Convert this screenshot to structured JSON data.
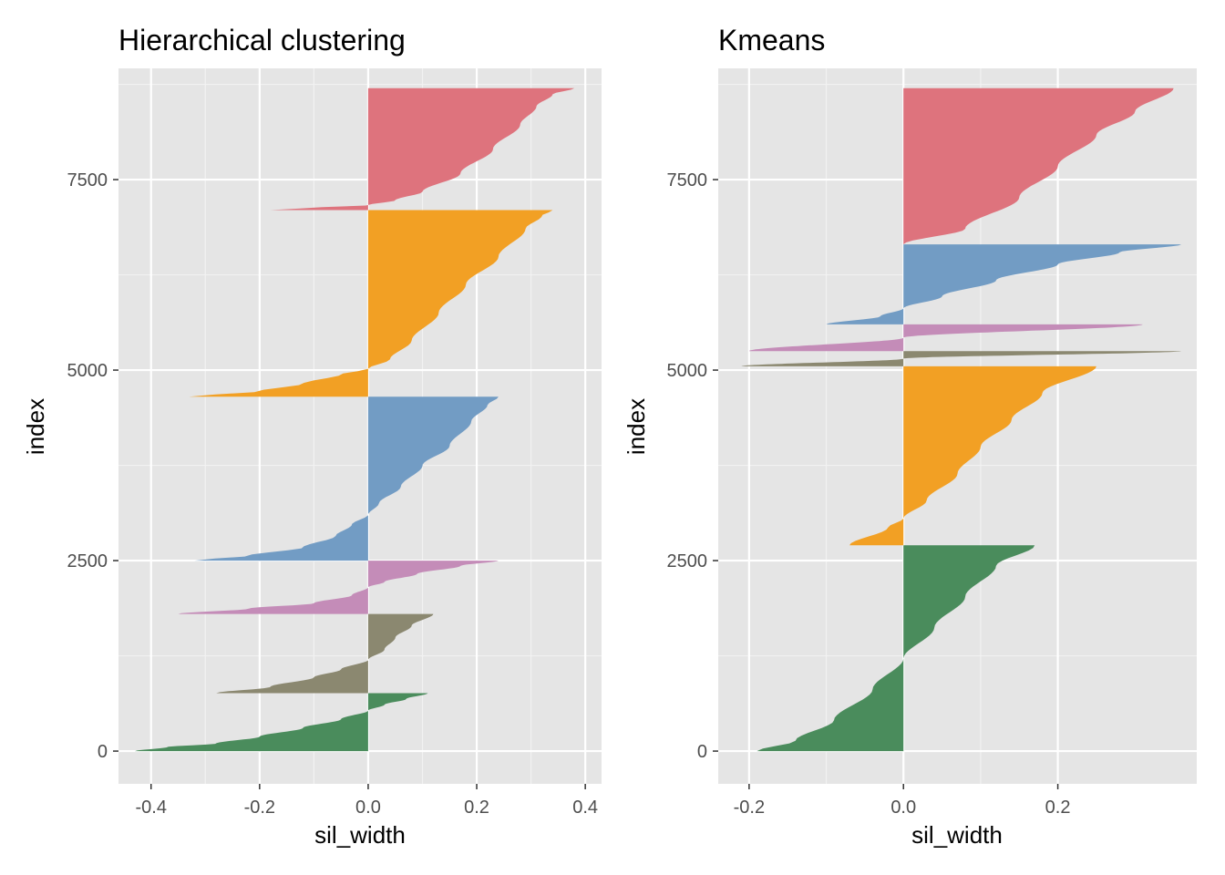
{
  "chart_data": [
    {
      "type": "silhouette",
      "title": "Hierarchical clustering",
      "xlabel": "sil_width",
      "ylabel": "index",
      "xlim": [
        -0.46,
        0.43
      ],
      "ylim": [
        -430,
        8960
      ],
      "xticks": [
        -0.4,
        -0.2,
        0.0,
        0.2,
        0.4
      ],
      "xtick_labels": [
        "-0.4",
        "-0.2",
        "0.0",
        "0.2",
        "0.4"
      ],
      "yticks": [
        0,
        2500,
        5000,
        7500
      ],
      "ytick_labels": [
        "0",
        "2500",
        "5000",
        "7500"
      ],
      "grid": true,
      "clusters": [
        {
          "color": "#4a8c5c",
          "index_range": [
            0,
            760
          ],
          "profile": [
            [
              0,
              -0.43
            ],
            [
              0.07,
              -0.37
            ],
            [
              0.13,
              -0.28
            ],
            [
              0.25,
              -0.2
            ],
            [
              0.4,
              -0.12
            ],
            [
              0.55,
              -0.05
            ],
            [
              0.7,
              0.0
            ],
            [
              0.8,
              0.03
            ],
            [
              0.9,
              0.07
            ],
            [
              1,
              0.11
            ]
          ]
        },
        {
          "color": "#8b8870",
          "index_range": [
            760,
            1800
          ],
          "profile": [
            [
              0,
              -0.28
            ],
            [
              0.08,
              -0.18
            ],
            [
              0.2,
              -0.1
            ],
            [
              0.3,
              -0.05
            ],
            [
              0.42,
              0.0
            ],
            [
              0.55,
              0.03
            ],
            [
              0.7,
              0.05
            ],
            [
              0.85,
              0.08
            ],
            [
              1,
              0.12
            ]
          ]
        },
        {
          "color": "#c48cb8",
          "index_range": [
            1800,
            2500
          ],
          "profile": [
            [
              0,
              -0.35
            ],
            [
              0.1,
              -0.22
            ],
            [
              0.2,
              -0.1
            ],
            [
              0.35,
              -0.03
            ],
            [
              0.5,
              0.0
            ],
            [
              0.6,
              0.03
            ],
            [
              0.75,
              0.09
            ],
            [
              0.9,
              0.17
            ],
            [
              1,
              0.24
            ]
          ]
        },
        {
          "color": "#729cc4",
          "index_range": [
            2500,
            4650
          ],
          "profile": [
            [
              0,
              -0.32
            ],
            [
              0.03,
              -0.22
            ],
            [
              0.08,
              -0.12
            ],
            [
              0.15,
              -0.06
            ],
            [
              0.22,
              -0.03
            ],
            [
              0.28,
              0.0
            ],
            [
              0.35,
              0.02
            ],
            [
              0.45,
              0.06
            ],
            [
              0.58,
              0.1
            ],
            [
              0.7,
              0.15
            ],
            [
              0.85,
              0.19
            ],
            [
              0.95,
              0.22
            ],
            [
              1,
              0.24
            ]
          ]
        },
        {
          "color": "#f2a024",
          "index_range": [
            4650,
            7100
          ],
          "profile": [
            [
              0,
              -0.33
            ],
            [
              0.03,
              -0.2
            ],
            [
              0.07,
              -0.12
            ],
            [
              0.12,
              -0.05
            ],
            [
              0.15,
              0.0
            ],
            [
              0.2,
              0.04
            ],
            [
              0.3,
              0.08
            ],
            [
              0.45,
              0.13
            ],
            [
              0.6,
              0.18
            ],
            [
              0.75,
              0.24
            ],
            [
              0.9,
              0.29
            ],
            [
              0.97,
              0.32
            ],
            [
              1,
              0.34
            ]
          ]
        },
        {
          "color": "#de737d",
          "index_range": [
            7100,
            8700
          ],
          "profile": [
            [
              0,
              -0.18
            ],
            [
              0.02,
              -0.1
            ],
            [
              0.04,
              0.0
            ],
            [
              0.08,
              0.05
            ],
            [
              0.15,
              0.1
            ],
            [
              0.3,
              0.17
            ],
            [
              0.5,
              0.23
            ],
            [
              0.7,
              0.28
            ],
            [
              0.85,
              0.31
            ],
            [
              0.95,
              0.34
            ],
            [
              1,
              0.38
            ]
          ]
        }
      ]
    },
    {
      "type": "silhouette",
      "title": "Kmeans",
      "xlabel": "sil_width",
      "ylabel": "index",
      "xlim": [
        -0.24,
        0.38
      ],
      "ylim": [
        -430,
        8960
      ],
      "xticks": [
        -0.2,
        0.0,
        0.2
      ],
      "xtick_labels": [
        "-0.2",
        "0.0",
        "0.2"
      ],
      "yticks": [
        0,
        2500,
        5000,
        7500
      ],
      "ytick_labels": [
        "0",
        "2500",
        "5000",
        "7500"
      ],
      "grid": true,
      "clusters": [
        {
          "color": "#4a8c5c",
          "index_range": [
            0,
            2700
          ],
          "profile": [
            [
              0,
              -0.19
            ],
            [
              0.05,
              -0.14
            ],
            [
              0.15,
              -0.09
            ],
            [
              0.3,
              -0.04
            ],
            [
              0.45,
              0.0
            ],
            [
              0.6,
              0.04
            ],
            [
              0.75,
              0.08
            ],
            [
              0.9,
              0.12
            ],
            [
              1,
              0.17
            ]
          ]
        },
        {
          "color": "#f2a024",
          "index_range": [
            2700,
            5050
          ],
          "profile": [
            [
              0,
              -0.07
            ],
            [
              0.1,
              -0.02
            ],
            [
              0.15,
              0.0
            ],
            [
              0.25,
              0.03
            ],
            [
              0.4,
              0.07
            ],
            [
              0.55,
              0.1
            ],
            [
              0.7,
              0.14
            ],
            [
              0.85,
              0.18
            ],
            [
              1,
              0.25
            ]
          ]
        },
        {
          "color": "#8b8870",
          "index_range": [
            5050,
            5250
          ],
          "profile": [
            [
              0,
              -0.21
            ],
            [
              0.5,
              0.0
            ],
            [
              1,
              0.36
            ]
          ]
        },
        {
          "color": "#c48cb8",
          "index_range": [
            5250,
            5600
          ],
          "profile": [
            [
              0,
              -0.2
            ],
            [
              0.5,
              0.0
            ],
            [
              1,
              0.31
            ]
          ]
        },
        {
          "color": "#729cc4",
          "index_range": [
            5600,
            6650
          ],
          "profile": [
            [
              0,
              -0.1
            ],
            [
              0.1,
              -0.03
            ],
            [
              0.2,
              0.0
            ],
            [
              0.35,
              0.05
            ],
            [
              0.55,
              0.12
            ],
            [
              0.75,
              0.2
            ],
            [
              0.9,
              0.28
            ],
            [
              1,
              0.36
            ]
          ]
        },
        {
          "color": "#de737d",
          "index_range": [
            6650,
            8700
          ],
          "profile": [
            [
              0,
              0.0
            ],
            [
              0.1,
              0.08
            ],
            [
              0.3,
              0.15
            ],
            [
              0.5,
              0.2
            ],
            [
              0.7,
              0.25
            ],
            [
              0.85,
              0.3
            ],
            [
              1,
              0.35
            ]
          ]
        }
      ]
    }
  ]
}
